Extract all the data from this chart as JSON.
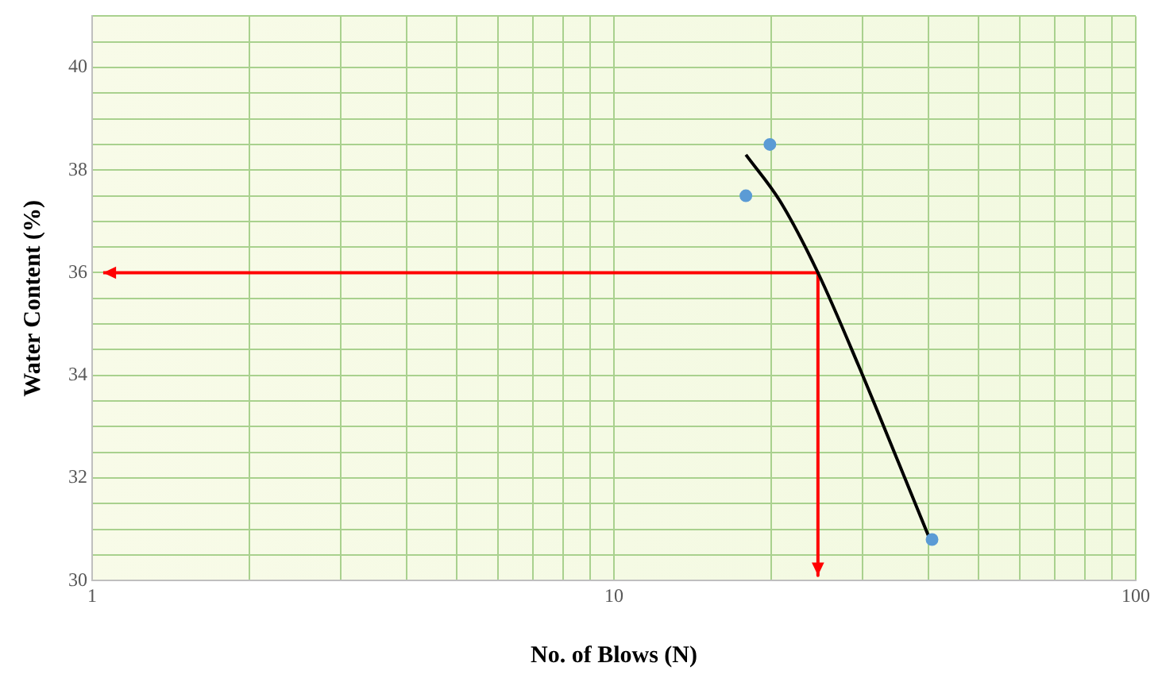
{
  "chart_data": {
    "type": "scatter",
    "xlabel": "No. of Blows (N)",
    "ylabel": "Water Content (%)",
    "log": "x",
    "grid": true,
    "legend": false,
    "xlim": [
      1,
      100
    ],
    "xticks": [
      1,
      {
        "value": 2,
        "label": null
      },
      {
        "value": 3,
        "label": null
      },
      {
        "value": 4,
        "label": null
      },
      {
        "value": 5,
        "label": null
      },
      {
        "value": 6,
        "label": null
      },
      {
        "value": 7,
        "label": null
      },
      {
        "value": 8,
        "label": null
      },
      {
        "value": 9,
        "label": null
      },
      10,
      {
        "value": 20,
        "label": null
      },
      {
        "value": 30,
        "label": null
      },
      {
        "value": 40,
        "label": null
      },
      {
        "value": 50,
        "label": null
      },
      {
        "value": 60,
        "label": null
      },
      {
        "value": 70,
        "label": null
      },
      {
        "value": 80,
        "label": null
      },
      {
        "value": 90,
        "label": null
      },
      100
    ],
    "ylim": [
      30,
      41
    ],
    "yticks": [
      30,
      {
        "value": 30.5,
        "label": null
      },
      {
        "value": 31,
        "label": null
      },
      {
        "value": 31.5,
        "label": null
      },
      32,
      {
        "value": 32.5,
        "label": null
      },
      {
        "value": 33,
        "label": null
      },
      {
        "value": 33.5,
        "label": null
      },
      34,
      {
        "value": 34.5,
        "label": null
      },
      {
        "value": 35,
        "label": null
      },
      {
        "value": 35.5,
        "label": null
      },
      36,
      {
        "value": 36.5,
        "label": null
      },
      {
        "value": 37,
        "label": null
      },
      {
        "value": 37.5,
        "label": null
      },
      38,
      {
        "value": 38.5,
        "label": null
      },
      {
        "value": 39,
        "label": null
      },
      {
        "value": 39.5,
        "label": null
      },
      40,
      {
        "value": 40.5,
        "label": null
      },
      {
        "value": 41,
        "label": null
      }
    ],
    "series": [
      {
        "color": "#5b9bd5",
        "marker": "circle",
        "x": [
          17.9,
          19.9,
          40.7
        ],
        "values": [
          37.5,
          38.5,
          30.8
        ]
      },
      {
        "type": "line",
        "color": "#000000",
        "marker": "none",
        "x": [
          17.9,
          20.8,
          24.6,
          29.4,
          35.1,
          40.7
        ],
        "values": [
          38.3,
          37.4,
          36,
          34.2,
          32.3,
          30.7
        ]
      },
      {
        "type": "line",
        "color": "#ff0000",
        "marker": "none",
        "x": [
          1.05,
          24.6,
          24.6
        ],
        "values": [
          36,
          36,
          30.1
        ]
      }
    ]
  }
}
